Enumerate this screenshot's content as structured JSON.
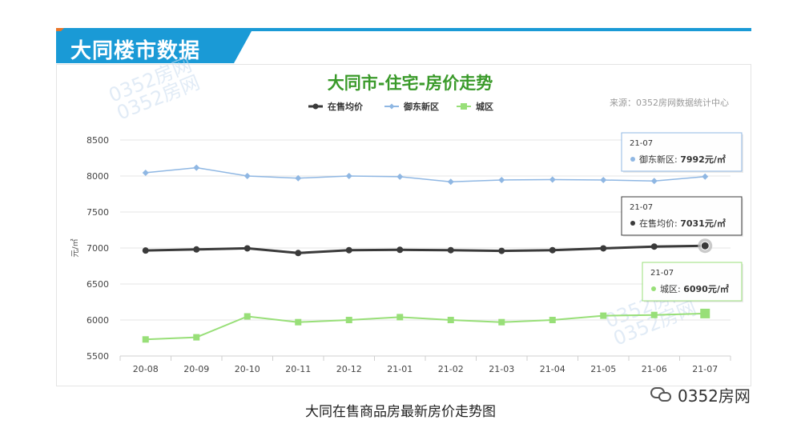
{
  "header": {
    "section_title": "大同楼市数据"
  },
  "watermark": {
    "text": "0352房网"
  },
  "caption": "大同在售商品房最新房价走势图",
  "brand": {
    "name": "0352房网",
    "icon": "wechat-icon"
  },
  "colors": {
    "accent": "#1a9ad6",
    "title_green": "#3a9a2a",
    "avg": "#3a3a3a",
    "yudong": "#8fb7e3",
    "city": "#98df78"
  },
  "chart_data": {
    "type": "line",
    "title": "大同市-住宅-房价走势",
    "source": "来源：0352房网数据统计中心",
    "ylabel": "元/㎡",
    "xlabel": "",
    "ylim": [
      5500,
      8500
    ],
    "yticks": [
      "8500",
      "8000",
      "7500",
      "7000",
      "6500",
      "6000",
      "5500"
    ],
    "grid": true,
    "legend": "top-left",
    "categories": [
      "20-08",
      "20-09",
      "20-10",
      "20-11",
      "20-12",
      "21-01",
      "21-02",
      "21-03",
      "21-04",
      "21-05",
      "21-06",
      "21-07"
    ],
    "series": [
      {
        "name": "在售均价",
        "color": "#3a3a3a",
        "values": [
          6965,
          6980,
          6995,
          6930,
          6970,
          6975,
          6970,
          6960,
          6970,
          6995,
          7020,
          7031
        ]
      },
      {
        "name": "御东新区",
        "color": "#8fb7e3",
        "values": [
          8045,
          8115,
          8000,
          7970,
          8000,
          7990,
          7920,
          7945,
          7950,
          7945,
          7930,
          7992
        ]
      },
      {
        "name": "城区",
        "color": "#98df78",
        "values": [
          5730,
          5760,
          6050,
          5970,
          6000,
          6040,
          6000,
          5970,
          6000,
          6060,
          6070,
          6090
        ]
      }
    ],
    "tooltips": [
      {
        "period": "21-07",
        "label": "御东新区:",
        "value": "7992元/㎡"
      },
      {
        "period": "21-07",
        "label": "在售均价:",
        "value": "7031元/㎡"
      },
      {
        "period": "21-07",
        "label": "城区:",
        "value": "6090元/㎡"
      }
    ]
  }
}
